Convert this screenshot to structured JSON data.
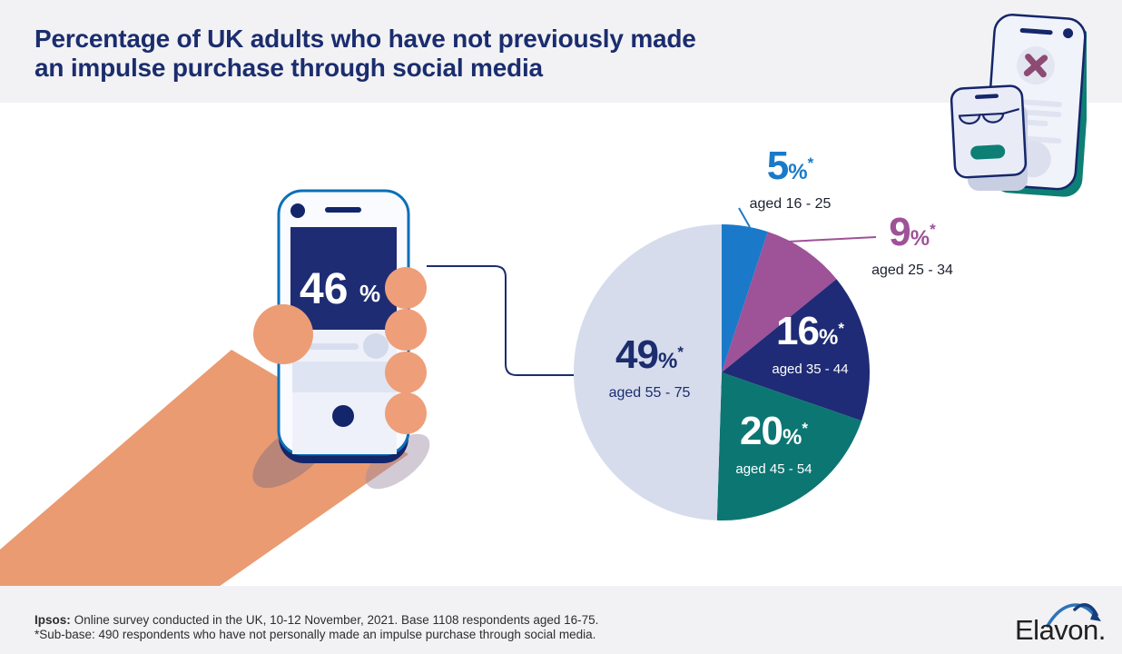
{
  "header": {
    "title_line1": "Percentage of UK adults who have not previously made",
    "title_line2": "an impulse purchase through social media"
  },
  "phone_callout": {
    "value": "46",
    "unit": "%"
  },
  "chart_data": {
    "type": "pie",
    "title": "Percentage of UK adults who have not previously made an impulse purchase through social media",
    "direction": "clockwise",
    "start_angle_deg": 0,
    "legend": false,
    "slices": [
      {
        "label": "aged 16 - 25",
        "value": 5,
        "unit": "%",
        "note": "*",
        "color": "#1a7ac9",
        "label_position": "outside"
      },
      {
        "label": "aged 25 - 34",
        "value": 9,
        "unit": "%",
        "note": "*",
        "color": "#9e5298",
        "label_position": "outside"
      },
      {
        "label": "aged 35 - 44",
        "value": 16,
        "unit": "%",
        "note": "*",
        "color": "#1f2b76",
        "label_position": "inside",
        "label_color": "#ffffff"
      },
      {
        "label": "aged 45 - 54",
        "value": 20,
        "unit": "%",
        "note": "*",
        "color": "#0c7673",
        "label_position": "inside",
        "label_color": "#ffffff"
      },
      {
        "label": "aged 55 - 75",
        "value": 49,
        "unit": "%",
        "note": "*",
        "color": "#d6dcec",
        "label_position": "inside",
        "label_color": "#1b2d6e"
      }
    ]
  },
  "footer": {
    "source_label": "Ipsos:",
    "source_text": "Online survey conducted in the UK, 10-12 November, 2021. Base 1108 respondents aged 16-75.",
    "subbase": "*Sub-base: 490 respondents who have not personally made an impulse purchase through social media."
  },
  "brand": {
    "logo_text": "Elavon."
  },
  "colors": {
    "title_navy": "#1b2d6e",
    "header_bg": "#f2f2f4",
    "skin_orange": "#ea9b72",
    "teal_accent": "#0d7f75",
    "phone_border_blue": "#0c6fb7"
  }
}
